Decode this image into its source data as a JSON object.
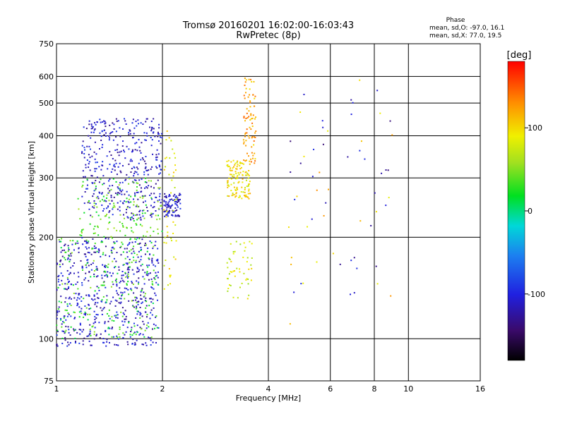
{
  "chart_data": {
    "type": "scatter",
    "title": "Tromsø 20160201 16:02:00-16:03:43",
    "subtitle": "RwPretec (8p)",
    "xlabel": "Frequency [MHz]",
    "ylabel": "Stationary phase Virtual Height [km]",
    "x_scale": "log",
    "y_scale": "log",
    "xlim": [
      1,
      16
    ],
    "ylim": [
      75,
      750
    ],
    "x_ticks": [
      1,
      2,
      4,
      6,
      8,
      10,
      16
    ],
    "y_ticks": [
      75,
      100,
      200,
      300,
      400,
      500,
      600,
      750
    ],
    "grid": true,
    "phase_stats": {
      "heading": "Phase",
      "o_mode": "mean, sd,O: -97.0, 16.1",
      "x_mode": "mean, sd,X:  77.0, 19.5"
    },
    "colorbar": {
      "label": "[deg]",
      "min": -180,
      "max": 180,
      "ticks": [
        -100,
        0,
        100
      ]
    },
    "point_groups": [
      {
        "name": "low-band-lower",
        "phase": -110,
        "x": [
          1.0,
          1.95
        ],
        "y": [
          95,
          200
        ],
        "n": 560
      },
      {
        "name": "low-band-lower-mixed",
        "phase": 30,
        "x": [
          1.0,
          1.95
        ],
        "y": [
          100,
          200
        ],
        "n": 220
      },
      {
        "name": "low-band-upper",
        "phase": -110,
        "x": [
          1.18,
          2.0
        ],
        "y": [
          225,
          450
        ],
        "n": 420
      },
      {
        "name": "low-band-upper-mixed",
        "phase": 40,
        "x": [
          1.15,
          2.0
        ],
        "y": [
          200,
          300
        ],
        "n": 140
      },
      {
        "name": "trace-2mhz",
        "phase": -110,
        "x": [
          2.02,
          2.25
        ],
        "y": [
          230,
          270
        ],
        "n": 90
      },
      {
        "name": "trace-2mhz-mixed",
        "phase": 90,
        "x": [
          2.02,
          2.2
        ],
        "y": [
          140,
          420
        ],
        "n": 50
      },
      {
        "name": "trace-3mhz",
        "phase": 95,
        "x": [
          3.05,
          3.55
        ],
        "y": [
          260,
          340
        ],
        "n": 120
      },
      {
        "name": "trace-3mhz-upper",
        "phase": 120,
        "x": [
          3.4,
          3.7
        ],
        "y": [
          330,
          600
        ],
        "n": 80
      },
      {
        "name": "trace-3mhz-lower",
        "phase": 80,
        "x": [
          3.05,
          3.6
        ],
        "y": [
          130,
          200
        ],
        "n": 50
      },
      {
        "name": "sparse-high",
        "phase": -115,
        "x": [
          4.5,
          9.0
        ],
        "y": [
          120,
          600
        ],
        "n": 35
      },
      {
        "name": "sparse-high-mixed",
        "phase": 105,
        "x": [
          4.5,
          9.0
        ],
        "y": [
          110,
          600
        ],
        "n": 25
      }
    ]
  }
}
